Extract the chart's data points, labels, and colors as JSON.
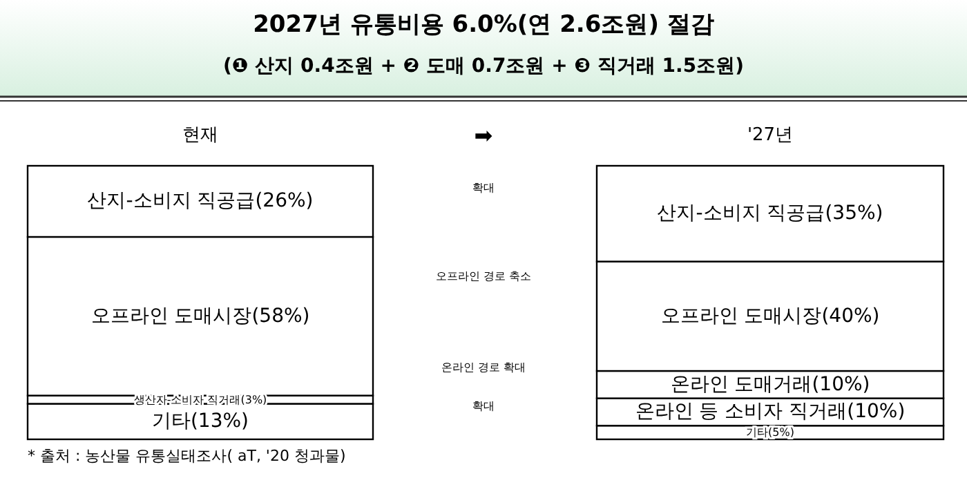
{
  "chart_data": {
    "type": "bar",
    "stacked": true,
    "title": "2027년 유통비용 6.0%(연 2.6조원) 절감",
    "subtitle": "(❶ 산지 0.4조원 + ❷ 도매 0.7조원 + ❸ 직거래 1.5조원)",
    "categories": [
      "현재",
      "'27년"
    ],
    "ylim": [
      0,
      100
    ],
    "series": [
      {
        "color": "#ffffff",
        "values": [
          13,
          5
        ],
        "value_labels": [
          "기타(13%)",
          "기타(5%)"
        ]
      },
      {
        "color": "#ffffff",
        "values": [
          3,
          10
        ],
        "value_labels": [
          "생산자-소비자 직거래(3%)",
          "온라인 등 소비자 직거래(10%)"
        ]
      },
      {
        "color": "#ffffff",
        "values": [
          null,
          10
        ],
        "value_labels": [
          null,
          "온라인 도매거래(10%)"
        ]
      },
      {
        "color": "#ffffff",
        "values": [
          58,
          40
        ],
        "value_labels": [
          "오프라인 도매시장(58%)",
          "오프라인 도매시장(40%)"
        ]
      },
      {
        "color": "#ffffff",
        "values": [
          26,
          35
        ],
        "value_labels": [
          "산지-소비지 직공급(26%)",
          "산지-소비지 직공급(35%)"
        ]
      }
    ],
    "annotations": [
      "➡",
      "확대",
      "오프라인 경로 축소",
      "온라인 경로 확대",
      "확대",
      "* 출처 : 농산물 유통실태조사( aT, '20 청과물)"
    ]
  }
}
